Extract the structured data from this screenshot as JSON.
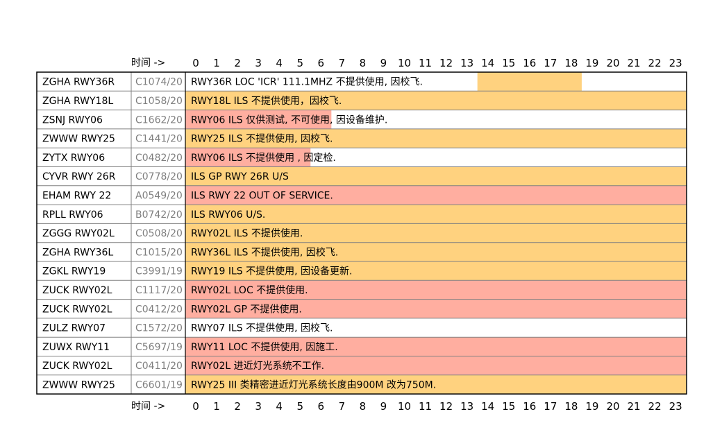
{
  "chart_data": {
    "type": "timeline",
    "axis_label": "时间 ->",
    "hours": [
      "0",
      "1",
      "2",
      "3",
      "4",
      "5",
      "6",
      "7",
      "8",
      "9",
      "10",
      "11",
      "12",
      "13",
      "14",
      "15",
      "16",
      "17",
      "18",
      "19",
      "20",
      "21",
      "22",
      "23"
    ],
    "colors": {
      "orange": "#ffd27f",
      "salmon": "#ffaea0",
      "border": "#000000",
      "grid": "#808080"
    },
    "rows": [
      {
        "runway": "ZGHA RWY36R",
        "notam": "C1074/20",
        "desc": "RWY36R LOC 'ICR' 111.1MHZ 不提供使用, 因校飞.",
        "segments": [
          {
            "start": 13.5,
            "end": 18.5,
            "color": "orange"
          }
        ]
      },
      {
        "runway": "ZGHA RWY18L",
        "notam": "C1058/20",
        "desc": "RWY18L ILS 不提供使用，因校飞.",
        "segments": [
          {
            "start": -0.5,
            "end": 23.5,
            "color": "orange"
          }
        ]
      },
      {
        "runway": "ZSNJ RWY06",
        "notam": "C1662/20",
        "desc": "RWY06 ILS 仅供测试, 不可使用, 因设备维护.",
        "segments": [
          {
            "start": -0.5,
            "end": 6.5,
            "color": "salmon"
          }
        ]
      },
      {
        "runway": "ZWWW RWY25",
        "notam": "C1441/20",
        "desc": "RWY25 ILS 不提供使用, 因校飞.",
        "segments": [
          {
            "start": -0.5,
            "end": 23.5,
            "color": "orange"
          }
        ]
      },
      {
        "runway": "ZYTX RWY06",
        "notam": "C0482/20",
        "desc": "RWY06 ILS 不提供使用 , 因定检.",
        "segments": [
          {
            "start": -0.5,
            "end": 5.5,
            "color": "salmon"
          }
        ]
      },
      {
        "runway": "CYVR RWY 26R",
        "notam": "C0778/20",
        "desc": "ILS GP RWY 26R U/S",
        "segments": [
          {
            "start": -0.5,
            "end": 23.5,
            "color": "orange"
          }
        ]
      },
      {
        "runway": "EHAM RWY 22",
        "notam": "A0549/20",
        "desc": "ILS RWY 22 OUT OF SERVICE.",
        "segments": [
          {
            "start": -0.5,
            "end": 23.5,
            "color": "salmon"
          }
        ]
      },
      {
        "runway": "RPLL RWY06",
        "notam": "B0742/20",
        "desc": "ILS RWY06 U/S.",
        "segments": [
          {
            "start": -0.5,
            "end": 23.5,
            "color": "orange"
          }
        ]
      },
      {
        "runway": "ZGGG RWY02L",
        "notam": "C0508/20",
        "desc": "RWY02L ILS 不提供使用.",
        "segments": [
          {
            "start": -0.5,
            "end": 23.5,
            "color": "orange"
          }
        ]
      },
      {
        "runway": "ZGHA RWY36L",
        "notam": "C1015/20",
        "desc": "RWY36L ILS 不提供使用, 因校飞.",
        "segments": [
          {
            "start": -0.5,
            "end": 23.5,
            "color": "orange"
          }
        ]
      },
      {
        "runway": "ZGKL RWY19",
        "notam": "C3991/19",
        "desc": "RWY19 ILS 不提供使用, 因设备更新.",
        "segments": [
          {
            "start": -0.5,
            "end": 23.5,
            "color": "orange"
          }
        ]
      },
      {
        "runway": "ZUCK RWY02L",
        "notam": "C1117/20",
        "desc": "RWY02L LOC 不提供使用.",
        "segments": [
          {
            "start": -0.5,
            "end": 23.5,
            "color": "salmon"
          }
        ]
      },
      {
        "runway": "ZUCK RWY02L",
        "notam": "C0412/20",
        "desc": "RWY02L GP 不提供使用.",
        "segments": [
          {
            "start": -0.5,
            "end": 23.5,
            "color": "salmon"
          }
        ]
      },
      {
        "runway": "ZULZ RWY07",
        "notam": "C1572/20",
        "desc": "RWY07 ILS 不提供使用, 因校飞.",
        "segments": []
      },
      {
        "runway": "ZUWX RWY11",
        "notam": "C5697/19",
        "desc": "RWY11 LOC 不提供使用, 因施工.",
        "segments": [
          {
            "start": -0.5,
            "end": 23.5,
            "color": "salmon"
          }
        ]
      },
      {
        "runway": "ZUCK RWY02L",
        "notam": "C0411/20",
        "desc": "RWY02L 进近灯光系统不工作.",
        "segments": [
          {
            "start": -0.5,
            "end": 23.5,
            "color": "salmon"
          }
        ]
      },
      {
        "runway": "ZWWW RWY25",
        "notam": "C6601/19",
        "desc": "RWY25 III 类精密进近灯光系统长度由900M 改为750M.",
        "segments": [
          {
            "start": -0.5,
            "end": 23.5,
            "color": "orange"
          }
        ]
      }
    ]
  }
}
